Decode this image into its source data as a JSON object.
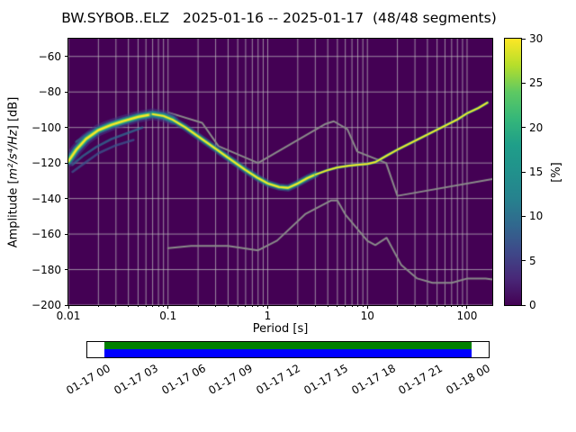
{
  "labels": {
    "ylabel_prefix": "Amplitude [",
    "ylabel_math": "m²/s⁴/Hz",
    "ylabel_suffix": "] [dB]"
  },
  "chart_data": {
    "type": "heatmap",
    "title": "BW.SYBOB..ELZ   2025-01-16 -- 2025-01-17  (48/48 segments)",
    "station_id": "BW.SYBOB..ELZ",
    "date_range": "2025-01-16 -- 2025-01-17",
    "segments": "48/48 segments",
    "xlabel": "Period [s]",
    "ylabel": "Amplitude [m²/s⁴/Hz] [dB]",
    "xscale": "log",
    "xlim": [
      0.01,
      179
    ],
    "ylim": [
      -200,
      -50
    ],
    "grid": true,
    "grid_color": "#c0c0c0",
    "background_color": "#440154",
    "x_ticks": [
      {
        "v": 0.01,
        "label": "0.01"
      },
      {
        "v": 0.1,
        "label": "0.1"
      },
      {
        "v": 1,
        "label": "1"
      },
      {
        "v": 10,
        "label": "10"
      },
      {
        "v": 100,
        "label": "100"
      }
    ],
    "y_ticks": [
      {
        "v": -60,
        "label": "−60"
      },
      {
        "v": -80,
        "label": "−80"
      },
      {
        "v": -100,
        "label": "−100"
      },
      {
        "v": -120,
        "label": "−120"
      },
      {
        "v": -140,
        "label": "−140"
      },
      {
        "v": -160,
        "label": "−160"
      },
      {
        "v": -180,
        "label": "−180"
      },
      {
        "v": -200,
        "label": "−200"
      }
    ],
    "colorbar": {
      "label": "[%]",
      "min": 0,
      "max": 30,
      "colormap": "viridis",
      "ticks": [
        {
          "v": 0,
          "label": "0"
        },
        {
          "v": 5,
          "label": "5"
        },
        {
          "v": 10,
          "label": "10"
        },
        {
          "v": 15,
          "label": "15"
        },
        {
          "v": 20,
          "label": "20"
        },
        {
          "v": 25,
          "label": "25"
        },
        {
          "v": 30,
          "label": "30"
        }
      ],
      "gradient": [
        "#440154",
        "#482878",
        "#3e4989",
        "#31688e",
        "#26828e",
        "#21918c",
        "#1f9e89",
        "#35b779",
        "#5ec962",
        "#b5de2b",
        "#fde725"
      ]
    },
    "series": [
      {
        "name": "psd-mode",
        "role": "psd-band",
        "color": "#fde725",
        "points": [
          [
            0.01,
            -119
          ],
          [
            0.012,
            -112.5
          ],
          [
            0.015,
            -106.5
          ],
          [
            0.02,
            -101.5
          ],
          [
            0.027,
            -98.5
          ],
          [
            0.035,
            -96.5
          ],
          [
            0.05,
            -94
          ],
          [
            0.07,
            -92.5
          ],
          [
            0.09,
            -93.5
          ],
          [
            0.11,
            -95.5
          ],
          [
            0.15,
            -100
          ],
          [
            0.2,
            -105
          ],
          [
            0.3,
            -112
          ],
          [
            0.4,
            -117
          ],
          [
            0.6,
            -124
          ],
          [
            0.8,
            -128.5
          ],
          [
            1.0,
            -131.5
          ],
          [
            1.3,
            -133.5
          ],
          [
            1.6,
            -134
          ],
          [
            2.0,
            -131.5
          ],
          [
            2.5,
            -128.5
          ],
          [
            3.0,
            -126.5
          ],
          [
            4.0,
            -124
          ],
          [
            5.0,
            -122.5
          ],
          [
            6.5,
            -121.5
          ],
          [
            8.0,
            -121
          ],
          [
            10.0,
            -120.5
          ],
          [
            12.0,
            -119.5
          ],
          [
            16.0,
            -115.5
          ],
          [
            20.0,
            -112.5
          ],
          [
            30.0,
            -107.5
          ],
          [
            40.0,
            -104
          ],
          [
            60.0,
            -99
          ],
          [
            80.0,
            -95.5
          ],
          [
            100.0,
            -92
          ],
          [
            130.0,
            -89
          ],
          [
            160.0,
            -86
          ]
        ]
      },
      {
        "name": "psd-strand-upper",
        "role": "strand",
        "color": "#21918c",
        "points": [
          [
            0.012,
            -108
          ],
          [
            0.016,
            -103
          ],
          [
            0.022,
            -99.5
          ],
          [
            0.03,
            -97
          ]
        ]
      },
      {
        "name": "psd-strand-lower-1",
        "role": "strand",
        "color": "#31688e",
        "points": [
          [
            0.011,
            -121
          ],
          [
            0.014,
            -116
          ],
          [
            0.019,
            -111
          ],
          [
            0.027,
            -106.5
          ],
          [
            0.04,
            -103
          ],
          [
            0.055,
            -100
          ]
        ]
      },
      {
        "name": "psd-strand-lower-2",
        "role": "strand",
        "color": "#3b528b",
        "points": [
          [
            0.011,
            -125
          ],
          [
            0.015,
            -119.5
          ],
          [
            0.02,
            -114.5
          ],
          [
            0.03,
            -110
          ],
          [
            0.045,
            -107
          ]
        ]
      },
      {
        "name": "noise-model-nhnm",
        "role": "noise-model",
        "color": "#8a8a8a",
        "points": [
          [
            0.1,
            -91.5
          ],
          [
            0.22,
            -97.4
          ],
          [
            0.32,
            -110.5
          ],
          [
            0.8,
            -120.0
          ],
          [
            3.8,
            -98.0
          ],
          [
            4.6,
            -96.5
          ],
          [
            6.3,
            -101.0
          ],
          [
            7.9,
            -113.5
          ],
          [
            15.4,
            -120.0
          ],
          [
            20.0,
            -138.5
          ],
          [
            179.0,
            -129.0
          ]
        ]
      },
      {
        "name": "noise-model-nlnm",
        "role": "noise-model",
        "color": "#8a8a8a",
        "points": [
          [
            0.1,
            -168.0
          ],
          [
            0.17,
            -166.7
          ],
          [
            0.4,
            -166.7
          ],
          [
            0.8,
            -169.2
          ],
          [
            1.24,
            -163.7
          ],
          [
            2.4,
            -148.6
          ],
          [
            4.3,
            -141.1
          ],
          [
            5.0,
            -141.1
          ],
          [
            6.0,
            -149.0
          ],
          [
            10.0,
            -163.8
          ],
          [
            12.0,
            -166.2
          ],
          [
            15.6,
            -162.1
          ],
          [
            21.9,
            -177.5
          ],
          [
            31.6,
            -185.0
          ],
          [
            45.0,
            -187.5
          ],
          [
            70.0,
            -187.5
          ],
          [
            101.0,
            -185.0
          ],
          [
            154.0,
            -185.0
          ],
          [
            179.0,
            -185.5
          ]
        ]
      }
    ]
  },
  "timeline": {
    "coverage": {
      "start_frac": 0.0426,
      "end_frac": 0.9574,
      "top_color": "#008000",
      "bottom_color": "#0000ff"
    },
    "ticks": [
      {
        "f": 0.0471,
        "label": "01-17 00"
      },
      {
        "f": 0.1654,
        "label": "01-17 03"
      },
      {
        "f": 0.2836,
        "label": "01-17 06"
      },
      {
        "f": 0.4019,
        "label": "01-17 09"
      },
      {
        "f": 0.5202,
        "label": "01-17 12"
      },
      {
        "f": 0.6385,
        "label": "01-17 15"
      },
      {
        "f": 0.7567,
        "label": "01-17 18"
      },
      {
        "f": 0.875,
        "label": "01-17 21"
      },
      {
        "f": 0.9933,
        "label": "01-18 00"
      }
    ]
  }
}
